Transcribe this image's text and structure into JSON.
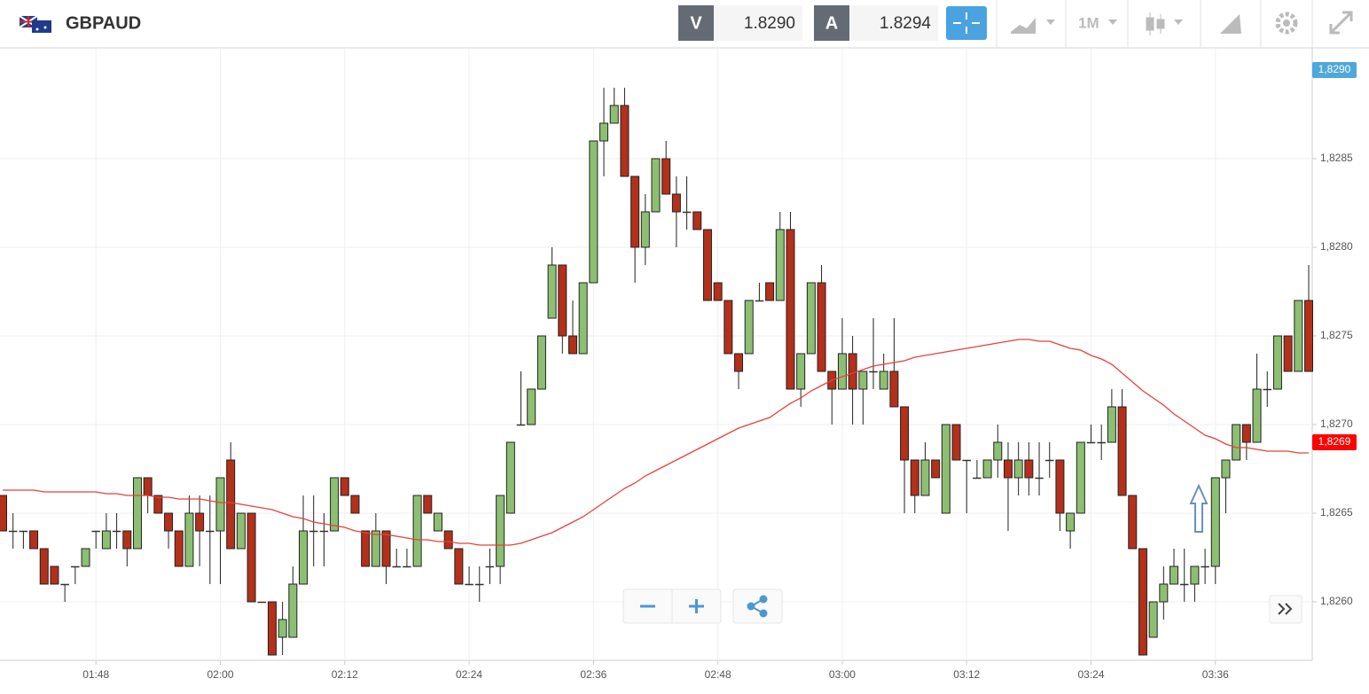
{
  "header": {
    "symbol": "GBPAUD",
    "sell_label": "V",
    "sell_price": "1.8290",
    "buy_label": "A",
    "buy_price": "1.8294",
    "timeframe": "1M"
  },
  "chart_data": {
    "type": "candlestick",
    "categories": [
      null,
      null,
      null,
      null,
      null,
      null,
      null,
      null,
      null,
      "01:48",
      null,
      null,
      null,
      null,
      null,
      null,
      null,
      null,
      null,
      null,
      null,
      "02:00",
      null,
      null,
      null,
      null,
      null,
      null,
      null,
      null,
      null,
      null,
      null,
      "02:12",
      null,
      null,
      null,
      null,
      null,
      null,
      null,
      null,
      null,
      null,
      null,
      "02:24",
      null,
      null,
      null,
      null,
      null,
      null,
      null,
      null,
      null,
      null,
      null,
      "02:36",
      null,
      null,
      null,
      null,
      null,
      null,
      null,
      null,
      null,
      null,
      null,
      "02:48",
      null,
      null,
      null,
      null,
      null,
      null,
      null,
      null,
      null,
      null,
      null,
      "03:00",
      null,
      null,
      null,
      null,
      null,
      null,
      null,
      null,
      null,
      null,
      null,
      "03:12",
      null,
      null,
      null,
      null,
      null,
      null,
      null,
      null,
      null,
      null,
      null,
      "03:24",
      null,
      null,
      null,
      null,
      null,
      null,
      null,
      null,
      null,
      null,
      null,
      "03:36",
      null,
      null,
      null,
      null,
      null,
      null,
      null,
      null,
      null
    ],
    "open": [
      1.8266,
      1.8264,
      1.8264,
      1.8264,
      1.8263,
      1.8262,
      1.8261,
      1.8262,
      1.8262,
      1.8264,
      1.8263,
      1.8264,
      1.8264,
      1.8263,
      1.8267,
      1.8266,
      1.8265,
      1.8264,
      1.8262,
      1.8265,
      1.8264,
      1.8264,
      1.8268,
      1.8263,
      1.8265,
      1.826,
      1.826,
      1.8258,
      1.8258,
      1.8261,
      1.8264,
      1.8264,
      1.8264,
      1.8267,
      1.8266,
      1.8264,
      1.8262,
      1.8264,
      1.8262,
      1.8262,
      1.8262,
      1.8266,
      1.8264,
      1.8264,
      1.8263,
      1.8261,
      1.8261,
      1.8262,
      1.8262,
      1.8265,
      1.827,
      1.827,
      1.8272,
      1.8276,
      1.8279,
      1.8275,
      1.8274,
      1.8278,
      1.8286,
      1.8287,
      1.8288,
      1.8284,
      1.828,
      1.8282,
      1.8285,
      1.8283,
      1.8282,
      1.8282,
      1.8281,
      1.8278,
      1.8277,
      1.8274,
      1.8274,
      1.8277,
      1.8278,
      1.8277,
      1.8281,
      1.8272,
      1.8274,
      1.8278,
      1.8273,
      1.8272,
      1.8274,
      1.8272,
      1.8273,
      1.8272,
      1.8273,
      1.8271,
      1.8268,
      1.8266,
      1.8268,
      1.8265,
      1.827,
      1.8268,
      1.8267,
      1.8267,
      1.8268,
      1.8268,
      1.8267,
      1.8268,
      1.8267,
      1.8268,
      1.8268,
      1.8264,
      1.8265,
      1.8269,
      1.8269,
      1.8269,
      1.8271,
      1.8266,
      1.8263,
      1.8258,
      1.826,
      1.8261,
      1.8261,
      1.8261,
      1.8262,
      1.8262,
      1.8267,
      1.8268,
      1.827,
      1.8269,
      1.8272,
      1.8272,
      1.8275,
      1.8273,
      1.8277
    ],
    "high": [
      1.8266,
      1.8265,
      1.8264,
      1.8264,
      1.8263,
      1.8262,
      1.8261,
      1.8262,
      1.8263,
      1.8264,
      1.8265,
      1.8265,
      1.8264,
      1.8267,
      1.8267,
      1.8266,
      1.8265,
      1.8264,
      1.8266,
      1.8266,
      1.8266,
      1.8267,
      1.8269,
      1.8265,
      1.8265,
      1.826,
      1.826,
      1.826,
      1.8262,
      1.8266,
      1.8266,
      1.8265,
      1.8267,
      1.8267,
      1.8266,
      1.8264,
      1.8265,
      1.8264,
      1.8263,
      1.8263,
      1.8266,
      1.8266,
      1.8265,
      1.8264,
      1.8263,
      1.8262,
      1.8262,
      1.8263,
      1.8266,
      1.8269,
      1.8273,
      1.8272,
      1.8275,
      1.828,
      1.8279,
      1.8277,
      1.8278,
      1.8286,
      1.8289,
      1.8289,
      1.8289,
      1.8284,
      1.8283,
      1.8285,
      1.8286,
      1.8284,
      1.8284,
      1.8282,
      1.8281,
      1.8278,
      1.8277,
      1.8274,
      1.8277,
      1.8278,
      1.8278,
      1.8282,
      1.8282,
      1.8274,
      1.8278,
      1.8279,
      1.8273,
      1.8276,
      1.8275,
      1.8273,
      1.8276,
      1.8274,
      1.8276,
      1.8271,
      1.8268,
      1.8269,
      1.8268,
      1.827,
      1.827,
      1.8268,
      1.8268,
      1.8268,
      1.827,
      1.8269,
      1.8269,
      1.8269,
      1.8269,
      1.8269,
      1.8268,
      1.8265,
      1.8269,
      1.827,
      1.827,
      1.8272,
      1.8272,
      1.8266,
      1.8263,
      1.826,
      1.8262,
      1.8263,
      1.8263,
      1.8262,
      1.8263,
      1.8267,
      1.8268,
      1.827,
      1.827,
      1.8274,
      1.8273,
      1.8275,
      1.8275,
      1.8277,
      1.8279
    ],
    "low": [
      1.8264,
      1.8263,
      1.8263,
      1.8263,
      1.8261,
      1.8261,
      1.826,
      1.8261,
      1.8262,
      1.8263,
      1.8263,
      1.8263,
      1.8262,
      1.8263,
      1.8265,
      1.8265,
      1.8263,
      1.8262,
      1.8262,
      1.8262,
      1.8261,
      1.8261,
      1.8263,
      1.8263,
      1.826,
      1.826,
      1.8257,
      1.8257,
      1.8258,
      1.8261,
      1.8262,
      1.8262,
      1.8264,
      1.8266,
      1.8265,
      1.8262,
      1.8262,
      1.8261,
      1.8262,
      1.8262,
      1.8262,
      1.8265,
      1.8264,
      1.8263,
      1.8261,
      1.8261,
      1.826,
      1.8261,
      1.8261,
      1.8265,
      1.827,
      1.827,
      1.8272,
      1.8276,
      1.8274,
      1.8274,
      1.8274,
      1.8278,
      1.8284,
      1.8287,
      1.8284,
      1.8278,
      1.8279,
      1.8282,
      1.8283,
      1.828,
      1.8281,
      1.8281,
      1.8277,
      1.8277,
      1.8274,
      1.8272,
      1.8274,
      1.8277,
      1.8277,
      1.8277,
      1.8272,
      1.8271,
      1.8274,
      1.8273,
      1.827,
      1.8272,
      1.827,
      1.827,
      1.8272,
      1.8272,
      1.8271,
      1.8265,
      1.8265,
      1.8266,
      1.8267,
      1.8265,
      1.8268,
      1.8265,
      1.8267,
      1.8267,
      1.8267,
      1.8264,
      1.8266,
      1.8266,
      1.8266,
      1.8267,
      1.8264,
      1.8263,
      1.8265,
      1.8269,
      1.8268,
      1.8269,
      1.8266,
      1.8263,
      1.8257,
      1.8258,
      1.8259,
      1.8261,
      1.826,
      1.826,
      1.8261,
      1.8261,
      1.8265,
      1.8268,
      1.8268,
      1.8269,
      1.8271,
      1.8272,
      1.8273,
      1.8273,
      1.8273
    ],
    "close": [
      1.8264,
      1.8264,
      1.8264,
      1.8263,
      1.8261,
      1.8261,
      1.8261,
      1.8262,
      1.8263,
      1.8264,
      1.8264,
      1.8264,
      1.8263,
      1.8267,
      1.8266,
      1.8265,
      1.8264,
      1.8262,
      1.8265,
      1.8264,
      1.8264,
      1.8267,
      1.8263,
      1.8265,
      1.826,
      1.826,
      1.8257,
      1.8259,
      1.8261,
      1.8264,
      1.8264,
      1.8264,
      1.8267,
      1.8266,
      1.8265,
      1.8262,
      1.8264,
      1.8262,
      1.8262,
      1.8262,
      1.8266,
      1.8265,
      1.8265,
      1.8263,
      1.8261,
      1.8261,
      1.8261,
      1.8262,
      1.8266,
      1.8269,
      1.827,
      1.8272,
      1.8275,
      1.8279,
      1.8275,
      1.8274,
      1.8278,
      1.8286,
      1.8287,
      1.8288,
      1.8284,
      1.828,
      1.8282,
      1.8285,
      1.8283,
      1.8282,
      1.8282,
      1.8281,
      1.8277,
      1.8277,
      1.8274,
      1.8273,
      1.8277,
      1.8277,
      1.8277,
      1.8281,
      1.8272,
      1.8274,
      1.8278,
      1.8273,
      1.8272,
      1.8274,
      1.8272,
      1.8273,
      1.8273,
      1.8273,
      1.8271,
      1.8268,
      1.8266,
      1.8268,
      1.8267,
      1.827,
      1.8268,
      1.8268,
      1.8267,
      1.8268,
      1.8269,
      1.8267,
      1.8268,
      1.8267,
      1.8267,
      1.8268,
      1.8265,
      1.8265,
      1.8269,
      1.8269,
      1.8269,
      1.8271,
      1.8266,
      1.8263,
      1.8257,
      1.826,
      1.8261,
      1.8262,
      1.8261,
      1.8262,
      1.8262,
      1.8267,
      1.8268,
      1.827,
      1.8269,
      1.8272,
      1.8272,
      1.8275,
      1.8273,
      1.8277,
      1.8273
    ],
    "up_color": "#8dbf72",
    "down_color": "#b3301a",
    "overlay": {
      "color": "#e8403a",
      "values": [
        1.82663,
        1.82663,
        1.82663,
        1.82663,
        1.82662,
        1.82662,
        1.82662,
        1.82662,
        1.82662,
        1.82662,
        1.82661,
        1.82661,
        1.8266,
        1.8266,
        1.8266,
        1.82659,
        1.82659,
        1.82658,
        1.82658,
        1.82658,
        1.82657,
        1.82656,
        1.82656,
        1.82655,
        1.82654,
        1.82653,
        1.82652,
        1.8265,
        1.82648,
        1.82647,
        1.82645,
        1.82644,
        1.82643,
        1.82642,
        1.8264,
        1.82639,
        1.82638,
        1.82638,
        1.82637,
        1.82636,
        1.82635,
        1.82635,
        1.82634,
        1.82634,
        1.82633,
        1.82633,
        1.82632,
        1.82632,
        1.82632,
        1.82632,
        1.82633,
        1.82635,
        1.82637,
        1.82639,
        1.82642,
        1.82645,
        1.82648,
        1.82652,
        1.82656,
        1.8266,
        1.82664,
        1.82667,
        1.82671,
        1.82674,
        1.82677,
        1.8268,
        1.82683,
        1.82686,
        1.82689,
        1.82692,
        1.82695,
        1.82698,
        1.827,
        1.82702,
        1.82704,
        1.82708,
        1.82712,
        1.82715,
        1.82719,
        1.82722,
        1.82725,
        1.82727,
        1.82729,
        1.82731,
        1.82733,
        1.82734,
        1.82735,
        1.82736,
        1.82738,
        1.82739,
        1.8274,
        1.82741,
        1.82742,
        1.82743,
        1.82744,
        1.82745,
        1.82746,
        1.82747,
        1.82748,
        1.82748,
        1.82747,
        1.82747,
        1.82745,
        1.82743,
        1.82742,
        1.82739,
        1.82737,
        1.82734,
        1.82729,
        1.82724,
        1.82719,
        1.82715,
        1.82711,
        1.82706,
        1.82702,
        1.82698,
        1.82694,
        1.82692,
        1.82689,
        1.82687,
        1.82687,
        1.82686,
        1.82685,
        1.82685,
        1.82685,
        1.82684,
        1.82684
      ]
    },
    "ylim": [
      1.82567,
      1.82912
    ],
    "yticks": [
      {
        "value": 1.826,
        "label": "1,8260"
      },
      {
        "value": 1.8265,
        "label": "1,8265"
      },
      {
        "value": 1.827,
        "label": "1,8270"
      },
      {
        "value": 1.8275,
        "label": "1,8275"
      },
      {
        "value": 1.828,
        "label": "1,8280"
      },
      {
        "value": 1.8285,
        "label": "1,8285"
      }
    ],
    "price_markers": [
      {
        "value": 1.829,
        "label": "1,8290",
        "color": "#4ea8d9"
      },
      {
        "value": 1.8269,
        "label": "1,8269",
        "color": "#ff0000"
      }
    ],
    "grid": true
  }
}
